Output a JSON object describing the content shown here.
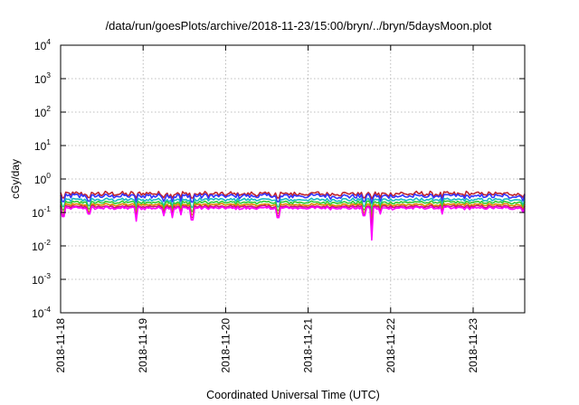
{
  "chart_data": {
    "type": "line",
    "title": "/data/run/goesPlots/archive/2018-11-23/15:00/bryn/../bryn/5daysMoon.plot",
    "xlabel": "Coordinated Universal Time (UTC)",
    "ylabel": "cGy/day",
    "yscale": "log",
    "ylim": [
      0.0001,
      10000
    ],
    "xlim": [
      "2018-11-18T00:00",
      "2018-11-23T15:00"
    ],
    "grid": true,
    "legend": "none",
    "x_ticks": [
      "2018-11-18",
      "2018-11-19",
      "2018-11-20",
      "2018-11-21",
      "2018-11-22",
      "2018-11-23"
    ],
    "y_ticks": [
      {
        "base": "10",
        "exp": "4"
      },
      {
        "base": "10",
        "exp": "3"
      },
      {
        "base": "10",
        "exp": "2"
      },
      {
        "base": "10",
        "exp": "1"
      },
      {
        "base": "10",
        "exp": "0"
      },
      {
        "base": "10",
        "exp": "-1"
      },
      {
        "base": "10",
        "exp": "-2"
      },
      {
        "base": "10",
        "exp": "-3"
      },
      {
        "base": "10",
        "exp": "-4"
      }
    ],
    "series": [
      {
        "color": "#c0262d",
        "level": 0.36,
        "noise": 0.22
      },
      {
        "color": "#3333ff",
        "level": 0.31,
        "noise": 0.2
      },
      {
        "color": "#19b9c3",
        "level": 0.24,
        "noise": 0.14
      },
      {
        "color": "#33cc33",
        "level": 0.2,
        "noise": 0.12
      },
      {
        "color": "#dd8800",
        "level": 0.17,
        "noise": 0.1
      },
      {
        "color": "#cc1177",
        "level": 0.15,
        "noise": 0.1
      },
      {
        "color": "#ff00ff",
        "level": 0.135,
        "noise": 0.12
      }
    ],
    "dips": [
      {
        "x": "2018-11-18T00:45",
        "value": 0.075
      },
      {
        "x": "2018-11-18T08:20",
        "value": 0.09
      },
      {
        "x": "2018-11-18T22:00",
        "value": 0.055
      },
      {
        "x": "2018-11-19T06:00",
        "value": 0.08
      },
      {
        "x": "2018-11-19T08:30",
        "value": 0.07
      },
      {
        "x": "2018-11-19T11:00",
        "value": 0.085
      },
      {
        "x": "2018-11-19T14:10",
        "value": 0.06
      },
      {
        "x": "2018-11-20T15:10",
        "value": 0.07
      },
      {
        "x": "2018-11-21T16:20",
        "value": 0.08
      },
      {
        "x": "2018-11-21T18:30",
        "value": 0.015
      },
      {
        "x": "2018-11-21T21:00",
        "value": 0.09
      },
      {
        "x": "2018-11-22T15:00",
        "value": 0.09
      },
      {
        "x": "2018-11-23T14:30",
        "value": 0.1
      }
    ]
  }
}
